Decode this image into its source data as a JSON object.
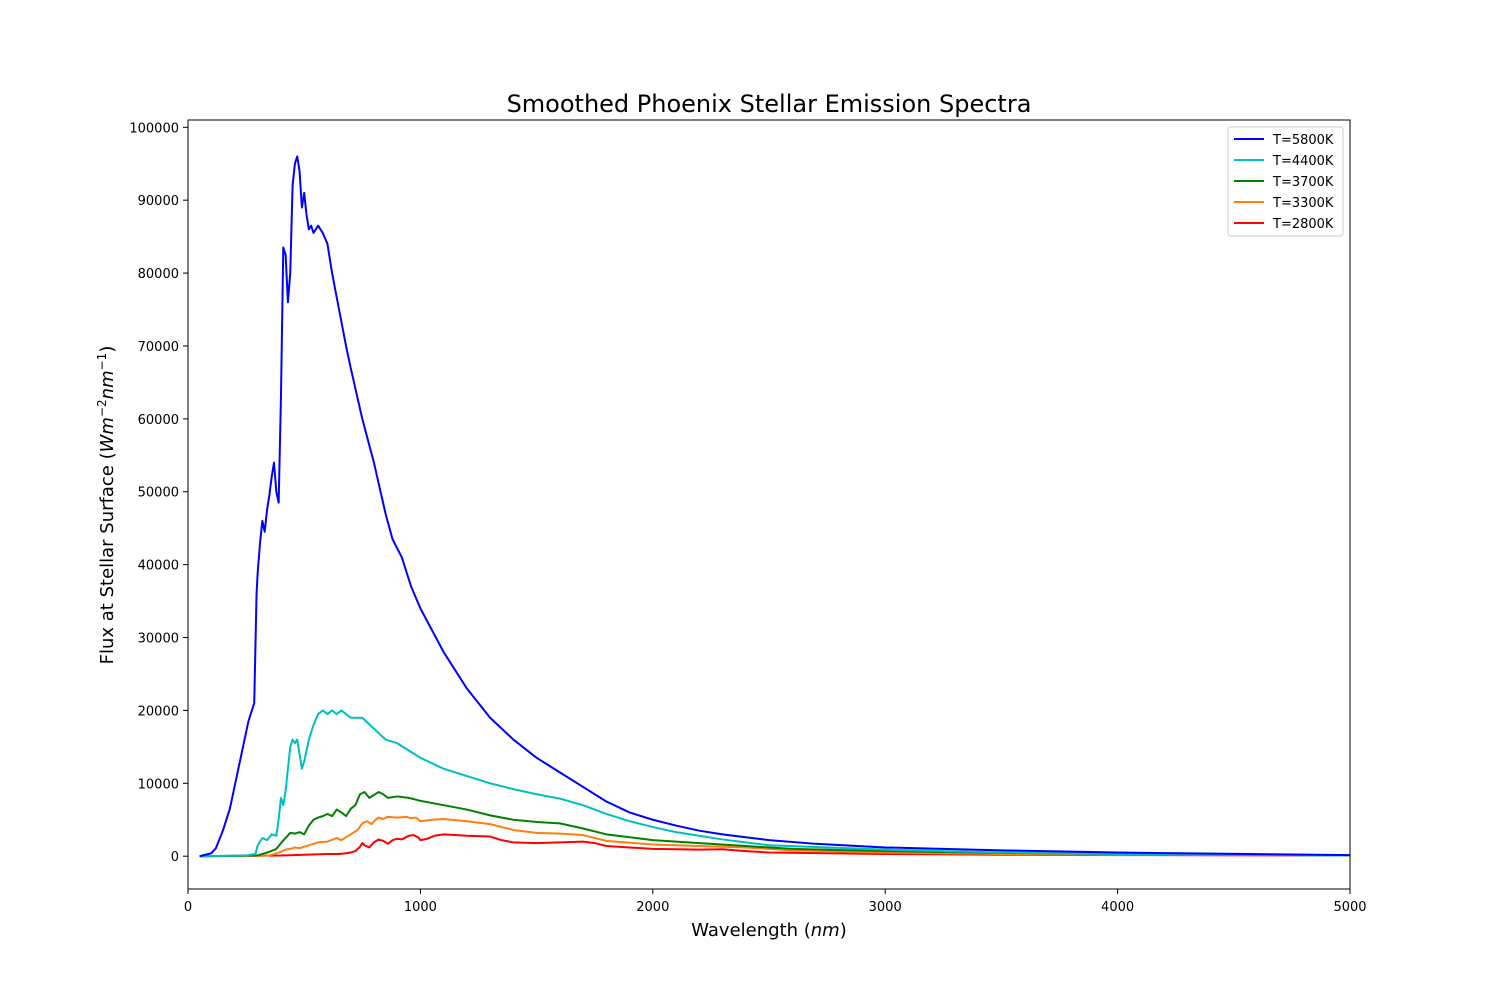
{
  "chart_data": {
    "type": "line",
    "title": "Smoothed Phoenix Stellar Emission Spectra",
    "xlabel": "Wavelength (nm)",
    "xlabel_parts": {
      "text": "Wavelength (",
      "math": "nm",
      "close": ")"
    },
    "ylabel": "Flux at Stellar Surface (Wm−2nm−1)",
    "ylabel_parts": {
      "text": "Flux at Stellar Surface (",
      "w": "Wm",
      "exp1": "−2",
      "n": "nm",
      "exp2": "−1",
      "close": ")"
    },
    "xlim": [
      0,
      5000
    ],
    "ylim": [
      -4500,
      101000
    ],
    "xticks": [
      0,
      1000,
      2000,
      3000,
      4000,
      5000
    ],
    "xtick_labels": [
      "0",
      "1000",
      "2000",
      "3000",
      "4000",
      "5000"
    ],
    "yticks": [
      0,
      10000,
      20000,
      30000,
      40000,
      50000,
      60000,
      70000,
      80000,
      90000,
      100000
    ],
    "ytick_labels": [
      "0",
      "10000",
      "20000",
      "30000",
      "40000",
      "50000",
      "60000",
      "70000",
      "80000",
      "90000",
      "100000"
    ],
    "grid": false,
    "legend_position": "top-right",
    "series": [
      {
        "name": "T=5800K",
        "color": "#0000ff",
        "points": [
          [
            50,
            0
          ],
          [
            100,
            400
          ],
          [
            120,
            1100
          ],
          [
            150,
            3500
          ],
          [
            180,
            6500
          ],
          [
            200,
            9500
          ],
          [
            230,
            14000
          ],
          [
            260,
            18500
          ],
          [
            285,
            21000
          ],
          [
            295,
            36000
          ],
          [
            300,
            39000
          ],
          [
            310,
            43000
          ],
          [
            320,
            46000
          ],
          [
            330,
            44500
          ],
          [
            340,
            47500
          ],
          [
            350,
            49500
          ],
          [
            360,
            52000
          ],
          [
            370,
            54000
          ],
          [
            380,
            50000
          ],
          [
            390,
            48500
          ],
          [
            400,
            63000
          ],
          [
            410,
            83500
          ],
          [
            420,
            82500
          ],
          [
            430,
            76000
          ],
          [
            440,
            80000
          ],
          [
            450,
            92000
          ],
          [
            460,
            95000
          ],
          [
            470,
            96000
          ],
          [
            480,
            94000
          ],
          [
            490,
            89000
          ],
          [
            500,
            91000
          ],
          [
            510,
            88000
          ],
          [
            520,
            86000
          ],
          [
            530,
            86500
          ],
          [
            540,
            85500
          ],
          [
            560,
            86500
          ],
          [
            580,
            85500
          ],
          [
            600,
            84000
          ],
          [
            620,
            80000
          ],
          [
            650,
            75000
          ],
          [
            680,
            70000
          ],
          [
            700,
            67000
          ],
          [
            750,
            60000
          ],
          [
            800,
            54000
          ],
          [
            850,
            47000
          ],
          [
            880,
            43500
          ],
          [
            920,
            41000
          ],
          [
            960,
            37000
          ],
          [
            1000,
            34000
          ],
          [
            1100,
            28000
          ],
          [
            1200,
            23000
          ],
          [
            1300,
            19000
          ],
          [
            1400,
            16000
          ],
          [
            1500,
            13500
          ],
          [
            1600,
            11500
          ],
          [
            1700,
            9500
          ],
          [
            1800,
            7500
          ],
          [
            1900,
            6000
          ],
          [
            2000,
            5000
          ],
          [
            2100,
            4200
          ],
          [
            2200,
            3500
          ],
          [
            2300,
            3000
          ],
          [
            2400,
            2600
          ],
          [
            2500,
            2200
          ],
          [
            2700,
            1700
          ],
          [
            3000,
            1200
          ],
          [
            3500,
            800
          ],
          [
            4000,
            500
          ],
          [
            5000,
            150
          ]
        ]
      },
      {
        "name": "T=4400K",
        "color": "#00bfbf",
        "points": [
          [
            50,
            0
          ],
          [
            250,
            100
          ],
          [
            290,
            300
          ],
          [
            300,
            1500
          ],
          [
            320,
            2500
          ],
          [
            340,
            2200
          ],
          [
            360,
            3000
          ],
          [
            380,
            2800
          ],
          [
            390,
            5000
          ],
          [
            400,
            8000
          ],
          [
            410,
            7000
          ],
          [
            420,
            9000
          ],
          [
            430,
            12000
          ],
          [
            440,
            15000
          ],
          [
            450,
            16000
          ],
          [
            460,
            15500
          ],
          [
            470,
            16000
          ],
          [
            480,
            14000
          ],
          [
            490,
            12000
          ],
          [
            500,
            13000
          ],
          [
            520,
            16000
          ],
          [
            540,
            18000
          ],
          [
            560,
            19500
          ],
          [
            580,
            20000
          ],
          [
            600,
            19500
          ],
          [
            620,
            20000
          ],
          [
            640,
            19500
          ],
          [
            660,
            20000
          ],
          [
            680,
            19500
          ],
          [
            700,
            19000
          ],
          [
            750,
            19000
          ],
          [
            800,
            17500
          ],
          [
            850,
            16000
          ],
          [
            900,
            15500
          ],
          [
            950,
            14500
          ],
          [
            1000,
            13500
          ],
          [
            1100,
            12000
          ],
          [
            1200,
            11000
          ],
          [
            1300,
            10000
          ],
          [
            1400,
            9200
          ],
          [
            1500,
            8500
          ],
          [
            1600,
            7900
          ],
          [
            1700,
            7000
          ],
          [
            1800,
            5800
          ],
          [
            1900,
            4800
          ],
          [
            2000,
            4000
          ],
          [
            2100,
            3300
          ],
          [
            2200,
            2800
          ],
          [
            2300,
            2300
          ],
          [
            2400,
            1900
          ],
          [
            2500,
            1500
          ],
          [
            3000,
            900
          ],
          [
            3500,
            500
          ],
          [
            4000,
            300
          ],
          [
            5000,
            100
          ]
        ]
      },
      {
        "name": "T=3700K",
        "color": "#008000",
        "points": [
          [
            50,
            0
          ],
          [
            300,
            100
          ],
          [
            350,
            600
          ],
          [
            380,
            1000
          ],
          [
            400,
            1800
          ],
          [
            420,
            2500
          ],
          [
            440,
            3200
          ],
          [
            460,
            3100
          ],
          [
            480,
            3300
          ],
          [
            500,
            3000
          ],
          [
            520,
            4200
          ],
          [
            540,
            5000
          ],
          [
            560,
            5300
          ],
          [
            580,
            5500
          ],
          [
            600,
            5800
          ],
          [
            620,
            5500
          ],
          [
            640,
            6400
          ],
          [
            660,
            6000
          ],
          [
            680,
            5500
          ],
          [
            700,
            6500
          ],
          [
            720,
            7000
          ],
          [
            740,
            8500
          ],
          [
            760,
            8800
          ],
          [
            780,
            8000
          ],
          [
            800,
            8400
          ],
          [
            820,
            8800
          ],
          [
            840,
            8500
          ],
          [
            860,
            8000
          ],
          [
            900,
            8200
          ],
          [
            950,
            8000
          ],
          [
            1000,
            7600
          ],
          [
            1100,
            7000
          ],
          [
            1200,
            6400
          ],
          [
            1300,
            5600
          ],
          [
            1400,
            5000
          ],
          [
            1500,
            4700
          ],
          [
            1600,
            4500
          ],
          [
            1700,
            3800
          ],
          [
            1800,
            3000
          ],
          [
            2000,
            2200
          ],
          [
            2200,
            1800
          ],
          [
            2400,
            1400
          ],
          [
            2600,
            1000
          ],
          [
            3000,
            700
          ],
          [
            3500,
            450
          ],
          [
            4000,
            300
          ],
          [
            5000,
            100
          ]
        ]
      },
      {
        "name": "T=3300K",
        "color": "#ff7f0e",
        "points": [
          [
            50,
            0
          ],
          [
            350,
            100
          ],
          [
            380,
            400
          ],
          [
            400,
            600
          ],
          [
            420,
            900
          ],
          [
            440,
            1000
          ],
          [
            460,
            1200
          ],
          [
            480,
            1100
          ],
          [
            500,
            1300
          ],
          [
            520,
            1500
          ],
          [
            560,
            1900
          ],
          [
            600,
            2000
          ],
          [
            640,
            2500
          ],
          [
            660,
            2200
          ],
          [
            700,
            3000
          ],
          [
            730,
            3600
          ],
          [
            750,
            4500
          ],
          [
            770,
            4800
          ],
          [
            790,
            4400
          ],
          [
            800,
            4800
          ],
          [
            820,
            5300
          ],
          [
            840,
            5100
          ],
          [
            860,
            5400
          ],
          [
            900,
            5300
          ],
          [
            940,
            5400
          ],
          [
            960,
            5200
          ],
          [
            980,
            5300
          ],
          [
            1000,
            4800
          ],
          [
            1050,
            5000
          ],
          [
            1100,
            5100
          ],
          [
            1200,
            4800
          ],
          [
            1300,
            4400
          ],
          [
            1400,
            3600
          ],
          [
            1500,
            3200
          ],
          [
            1600,
            3100
          ],
          [
            1700,
            2900
          ],
          [
            1800,
            2100
          ],
          [
            2000,
            1600
          ],
          [
            2200,
            1400
          ],
          [
            2400,
            1200
          ],
          [
            2600,
            800
          ],
          [
            3000,
            500
          ],
          [
            3500,
            300
          ],
          [
            4000,
            200
          ],
          [
            5000,
            150
          ]
        ]
      },
      {
        "name": "T=2800K",
        "color": "#ff0000",
        "points": [
          [
            50,
            0
          ],
          [
            400,
            100
          ],
          [
            500,
            200
          ],
          [
            600,
            300
          ],
          [
            650,
            300
          ],
          [
            680,
            400
          ],
          [
            700,
            500
          ],
          [
            720,
            700
          ],
          [
            740,
            1300
          ],
          [
            750,
            1800
          ],
          [
            760,
            1500
          ],
          [
            780,
            1200
          ],
          [
            800,
            1900
          ],
          [
            820,
            2300
          ],
          [
            840,
            2100
          ],
          [
            860,
            1700
          ],
          [
            880,
            2200
          ],
          [
            900,
            2400
          ],
          [
            920,
            2300
          ],
          [
            950,
            2800
          ],
          [
            970,
            2900
          ],
          [
            990,
            2600
          ],
          [
            1000,
            2200
          ],
          [
            1030,
            2400
          ],
          [
            1060,
            2800
          ],
          [
            1100,
            3000
          ],
          [
            1200,
            2800
          ],
          [
            1300,
            2700
          ],
          [
            1350,
            2200
          ],
          [
            1400,
            1900
          ],
          [
            1500,
            1800
          ],
          [
            1600,
            1900
          ],
          [
            1700,
            2000
          ],
          [
            1750,
            1800
          ],
          [
            1800,
            1400
          ],
          [
            1900,
            1200
          ],
          [
            2000,
            1000
          ],
          [
            2200,
            900
          ],
          [
            2300,
            950
          ],
          [
            2400,
            700
          ],
          [
            2500,
            500
          ],
          [
            3000,
            300
          ],
          [
            3500,
            200
          ],
          [
            4000,
            150
          ],
          [
            5000,
            100
          ]
        ]
      }
    ]
  }
}
